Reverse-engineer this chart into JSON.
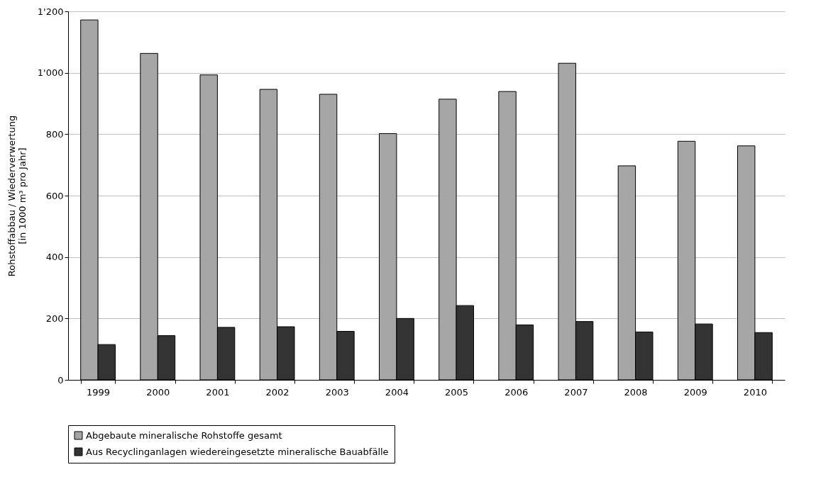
{
  "chart_data": {
    "type": "bar",
    "ylabel": "Rohstoffabbau / Wiederverwertung\n[in 1000 m³ pro Jahr]",
    "categories": [
      "1999",
      "2000",
      "2001",
      "2002",
      "2003",
      "2004",
      "2005",
      "2006",
      "2007",
      "2008",
      "2009",
      "2010"
    ],
    "series": [
      {
        "name": "Abgebaute mineralische Rohstoffe gesamt",
        "color": "#a6a6a6",
        "values": [
          1172,
          1063,
          993,
          946,
          930,
          802,
          914,
          939,
          1031,
          697,
          777,
          762
        ]
      },
      {
        "name": "Aus Recyclinganlagen wiedereingesetzte mineralische Bauabfälle",
        "color": "#333333",
        "values": [
          115,
          144,
          171,
          173,
          158,
          200,
          242,
          179,
          190,
          156,
          182,
          154
        ]
      }
    ],
    "ylim": [
      0,
      1200
    ],
    "yticks": [
      0,
      200,
      400,
      600,
      800,
      {
        "value": 1000,
        "label": "1'000"
      },
      {
        "value": 1200,
        "label": "1'200"
      }
    ],
    "grid": "y",
    "legend": "bottom"
  }
}
